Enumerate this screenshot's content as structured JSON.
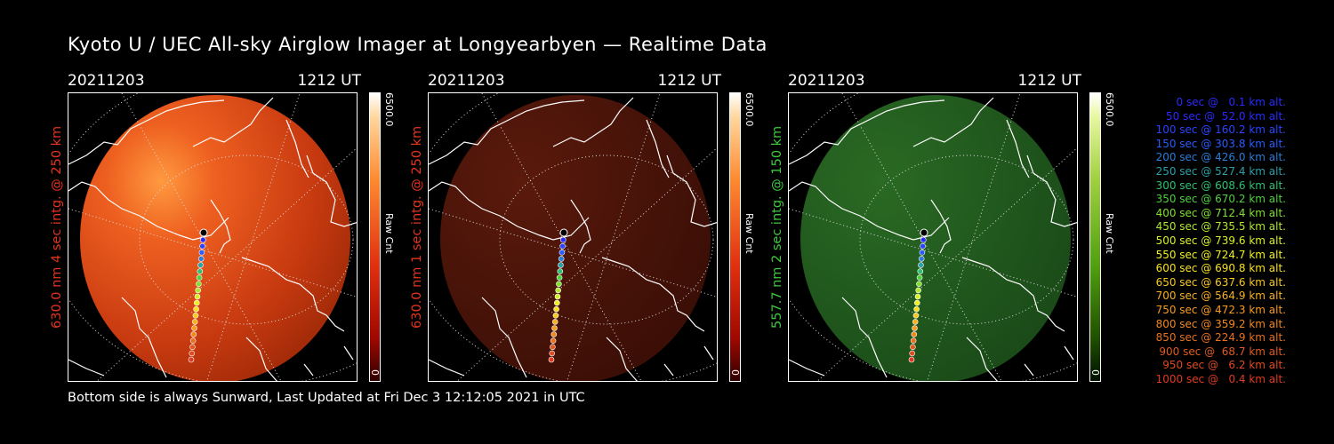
{
  "title": "Kyoto U / UEC All-sky Airglow Imager at Longyearbyen — Realtime Data",
  "footer": "Bottom side is always Sunward, Last Updated at Fri Dec  3 12:12:05 2021 in UTC",
  "panels": [
    {
      "date": "20211203",
      "time": "1212 UT",
      "ylabel": "630.0 nm 4 sec intg. @ 250 km",
      "ylabel_color": "#e4341c",
      "colorbar_max": "6500.0",
      "colorbar_unit": "Raw Cnt",
      "colorbar_min": "0",
      "glow": "red-bright"
    },
    {
      "date": "20211203",
      "time": "1212 UT",
      "ylabel": "630.0 nm 1 sec intg. @ 250 km",
      "ylabel_color": "#e4341c",
      "colorbar_max": "6500.0",
      "colorbar_unit": "Raw Cnt",
      "colorbar_min": "0",
      "glow": "red-dim"
    },
    {
      "date": "20211203",
      "time": "1212 UT",
      "ylabel": "557.7 nm 2 sec intg. @ 150 km",
      "ylabel_color": "#3fc83f",
      "colorbar_max": "6500.0",
      "colorbar_unit": "Raw Cnt",
      "colorbar_min": "0",
      "glow": "green"
    }
  ],
  "legend": [
    {
      "text": "0 sec @   0.1 km alt.",
      "color": "#2a2aff"
    },
    {
      "text": "50 sec @  52.0 km alt.",
      "color": "#2a2aff"
    },
    {
      "text": "100 sec @ 160.2 km alt.",
      "color": "#2a44ff"
    },
    {
      "text": "150 sec @ 303.8 km alt.",
      "color": "#2a5cff"
    },
    {
      "text": "200 sec @ 426.0 km alt.",
      "color": "#2a7cd8"
    },
    {
      "text": "250 sec @ 527.4 km alt.",
      "color": "#2aa0a8"
    },
    {
      "text": "300 sec @ 608.6 km alt.",
      "color": "#2ec070"
    },
    {
      "text": "350 sec @ 670.2 km alt.",
      "color": "#50d040"
    },
    {
      "text": "400 sec @ 712.4 km alt.",
      "color": "#80e030"
    },
    {
      "text": "450 sec @ 735.5 km alt.",
      "color": "#b0e830"
    },
    {
      "text": "500 sec @ 739.6 km alt.",
      "color": "#d8f028"
    },
    {
      "text": "550 sec @ 724.7 km alt.",
      "color": "#f0f020"
    },
    {
      "text": "600 sec @ 690.8 km alt.",
      "color": "#f8e020"
    },
    {
      "text": "650 sec @ 637.6 km alt.",
      "color": "#f8c820"
    },
    {
      "text": "700 sec @ 564.9 km alt.",
      "color": "#f8b020"
    },
    {
      "text": "750 sec @ 472.3 km alt.",
      "color": "#f89c20"
    },
    {
      "text": "800 sec @ 359.2 km alt.",
      "color": "#f08820"
    },
    {
      "text": "850 sec @ 224.9 km alt.",
      "color": "#e87020"
    },
    {
      "text": "900 sec @  68.7 km alt.",
      "color": "#e05a20"
    },
    {
      "text": "950 sec @   6.2 km alt.",
      "color": "#e04a20"
    },
    {
      "text": "1000 sec @   0.4 km alt.",
      "color": "#e03a20"
    }
  ]
}
